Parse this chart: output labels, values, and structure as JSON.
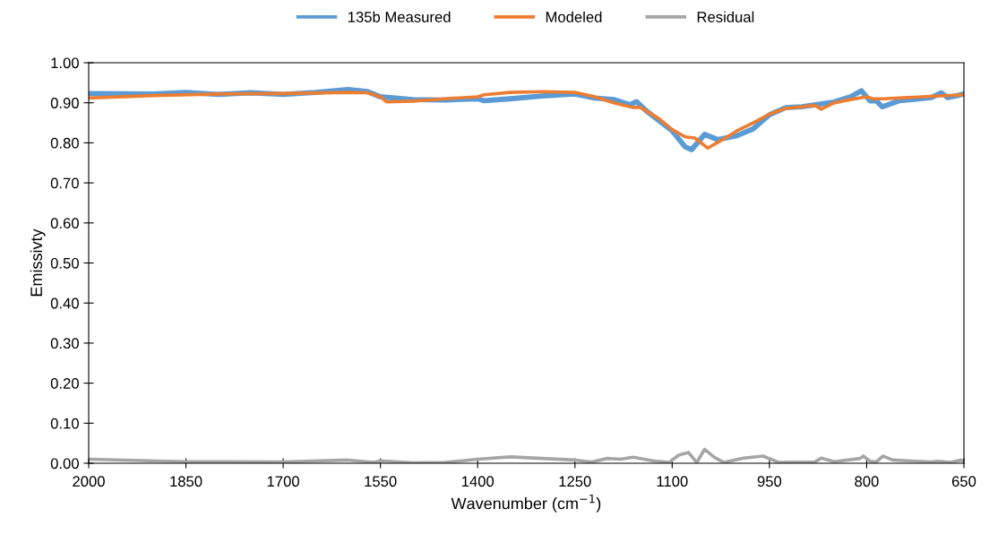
{
  "chart_data": {
    "type": "line",
    "xlabel": "Wavenumber (cm$^{−1}$)",
    "ylabel": "Emissivty",
    "xlim": [
      2000,
      650
    ],
    "xticks": [
      2000,
      1850,
      1700,
      1550,
      1400,
      1250,
      1100,
      950,
      800,
      650
    ],
    "ylim": [
      0,
      1
    ],
    "yticks": [
      {
        "value": 0,
        "label": "0.00"
      },
      {
        "value": 0.1,
        "label": "0.10"
      },
      {
        "value": 0.2,
        "label": "0.20"
      },
      {
        "value": 0.3,
        "label": "0.30"
      },
      {
        "value": 0.4,
        "label": "0.40"
      },
      {
        "value": 0.5,
        "label": "0.50"
      },
      {
        "value": 0.6,
        "label": "0.60"
      },
      {
        "value": 0.7,
        "label": "0.70"
      },
      {
        "value": 0.8,
        "label": "0.80"
      },
      {
        "value": 0.9,
        "label": "0.90"
      },
      {
        "value": 1,
        "label": "1.00"
      }
    ],
    "grid": false,
    "legend": "top",
    "marker": "none",
    "line_style": "solid",
    "series": [
      {
        "name": "135b Measured",
        "color": "#5b9bd5",
        "x": [
          2000,
          1900,
          1850,
          1800,
          1750,
          1700,
          1650,
          1600,
          1570,
          1550,
          1500,
          1450,
          1400,
          1390,
          1350,
          1300,
          1250,
          1220,
          1190,
          1165,
          1155,
          1140,
          1100,
          1080,
          1070,
          1050,
          1030,
          1000,
          975,
          950,
          925,
          900,
          850,
          825,
          808,
          795,
          785,
          776,
          750,
          700,
          685,
          675,
          660,
          650
        ],
        "values": [
          0.923,
          0.922,
          0.926,
          0.921,
          0.925,
          0.921,
          0.926,
          0.933,
          0.928,
          0.915,
          0.908,
          0.907,
          0.91,
          0.905,
          0.91,
          0.917,
          0.922,
          0.912,
          0.908,
          0.895,
          0.903,
          0.88,
          0.83,
          0.79,
          0.783,
          0.821,
          0.808,
          0.818,
          0.835,
          0.87,
          0.888,
          0.89,
          0.902,
          0.915,
          0.93,
          0.905,
          0.905,
          0.89,
          0.905,
          0.913,
          0.925,
          0.913,
          0.918,
          0.922
        ]
      },
      {
        "name": "Modeled",
        "color": "#ed7d31",
        "x": [
          2000,
          1900,
          1800,
          1700,
          1600,
          1570,
          1550,
          1540,
          1500,
          1450,
          1400,
          1390,
          1350,
          1300,
          1250,
          1220,
          1190,
          1160,
          1150,
          1120,
          1100,
          1080,
          1065,
          1045,
          1020,
          1000,
          975,
          950,
          925,
          900,
          880,
          870,
          850,
          825,
          800,
          790,
          775,
          750,
          700,
          650
        ],
        "values": [
          0.912,
          0.918,
          0.922,
          0.923,
          0.926,
          0.925,
          0.915,
          0.902,
          0.904,
          0.91,
          0.915,
          0.92,
          0.926,
          0.928,
          0.926,
          0.915,
          0.9,
          0.888,
          0.889,
          0.86,
          0.833,
          0.815,
          0.812,
          0.787,
          0.81,
          0.83,
          0.85,
          0.872,
          0.886,
          0.89,
          0.894,
          0.884,
          0.9,
          0.908,
          0.915,
          0.91,
          0.91,
          0.912,
          0.916,
          0.92
        ]
      },
      {
        "name": "Residual",
        "color": "#a5a5a5",
        "x": [
          2000,
          1850,
          1800,
          1700,
          1600,
          1560,
          1550,
          1500,
          1450,
          1400,
          1350,
          1300,
          1250,
          1225,
          1200,
          1180,
          1160,
          1130,
          1105,
          1090,
          1075,
          1062,
          1050,
          1035,
          1020,
          990,
          960,
          935,
          880,
          870,
          850,
          810,
          805,
          795,
          785,
          775,
          760,
          700,
          690,
          670,
          655,
          650
        ],
        "values": [
          0.01,
          0.004,
          0.004,
          0.003,
          0.008,
          0.002,
          0.006,
          0.001,
          0.002,
          0.01,
          0.016,
          0.012,
          0.008,
          0.003,
          0.012,
          0.01,
          0.015,
          0.006,
          0.002,
          0.02,
          0.027,
          0.002,
          0.035,
          0.015,
          0.002,
          0.013,
          0.018,
          0.002,
          0.003,
          0.013,
          0.004,
          0.012,
          0.018,
          0.005,
          0.003,
          0.018,
          0.008,
          0.003,
          0.005,
          0.002,
          0.008,
          0.004
        ]
      }
    ]
  }
}
